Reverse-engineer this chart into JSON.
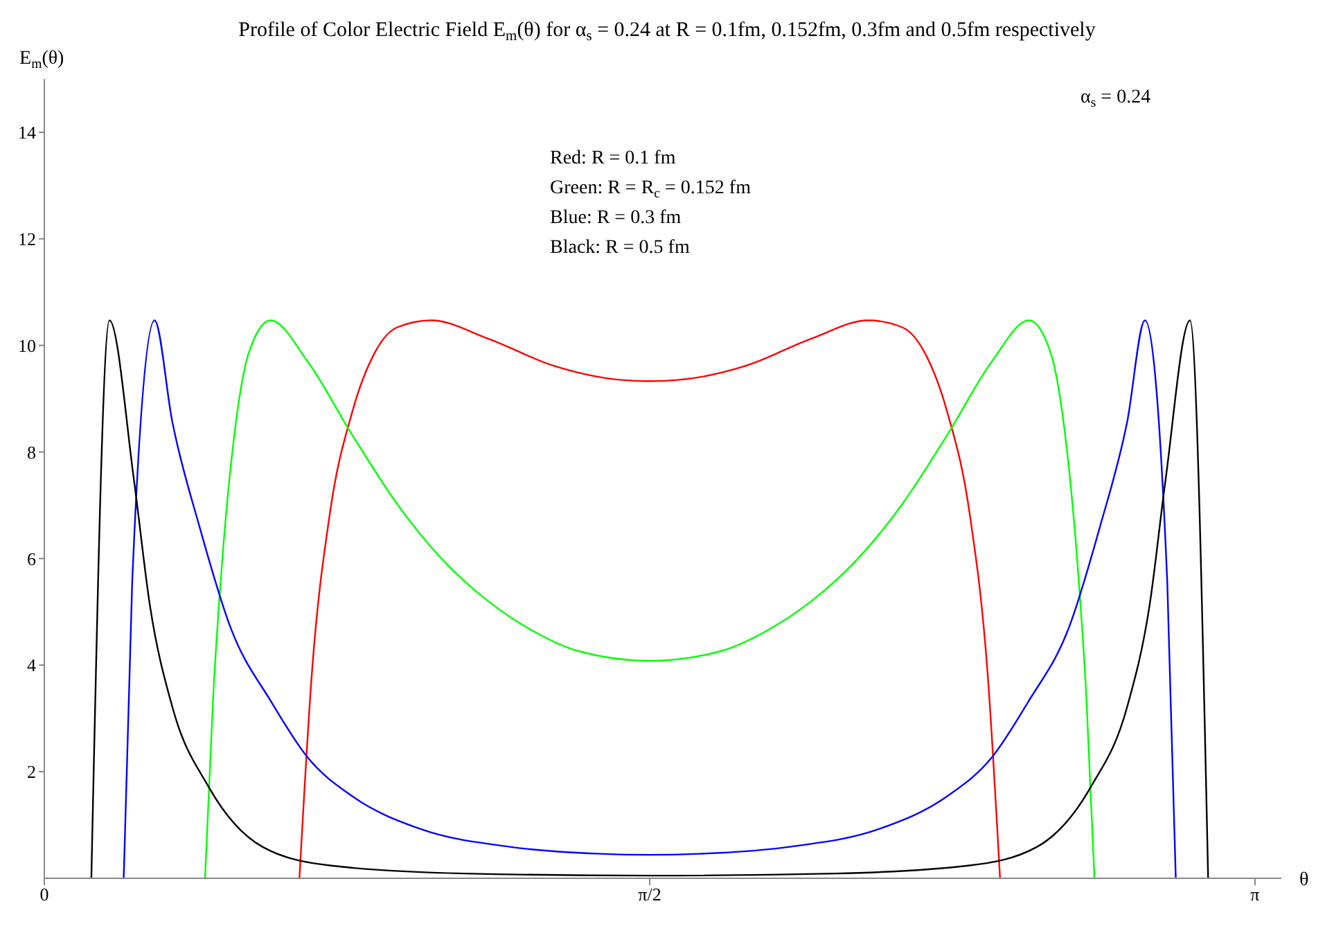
{
  "chart_data": {
    "type": "line",
    "title": "Profile of Color Electric Field E$_{m}$(θ) for α$_{s}$ = 0.24 at R = 0.1fm, 0.152fm, 0.3fm and 0.5fm respectively",
    "xlabel": "θ",
    "ylabel": "E$_{m}$(θ)",
    "annotations": [
      "Red: R = 0.1 fm",
      "Green: R = R$_{c}$  =  0.152 fm",
      "Blue: R = 0.3 fm",
      "Black: R = 0.5 fm",
      "α$_{s}$ =  0.24"
    ],
    "xlim": [
      0,
      3.21
    ],
    "xticks": [
      0,
      {
        "value": 1.5708,
        "label": "π/2"
      },
      {
        "value": 3.1416,
        "label": "π"
      }
    ],
    "ylim": [
      0,
      15
    ],
    "yticks": [
      2,
      4,
      6,
      8,
      10,
      12,
      14
    ],
    "marker": "none",
    "line_style": "solid",
    "tick_labels": "xy",
    "series": [
      {
        "color": "#ff0000",
        "x": [
          0.662,
          0.694,
          0.741,
          0.799,
          0.858,
          0.916,
          1.004,
          1.15,
          1.325,
          1.5,
          1.571,
          1.642,
          1.817,
          1.992,
          2.138,
          2.226,
          2.284,
          2.343,
          2.401,
          2.448,
          2.48
        ],
        "values": [
          0,
          3.82,
          6.85,
          8.75,
          9.87,
          10.34,
          10.47,
          10.13,
          9.61,
          9.35,
          9.33,
          9.35,
          9.61,
          10.13,
          10.47,
          10.34,
          9.87,
          8.75,
          6.85,
          3.82,
          0
        ]
      },
      {
        "color": "#00ff00",
        "x": [
          0.417,
          0.438,
          0.461,
          0.496,
          0.531,
          0.587,
          0.683,
          0.799,
          0.916,
          1.033,
          1.15,
          1.266,
          1.383,
          1.571,
          1.759,
          1.876,
          1.992,
          2.109,
          2.226,
          2.343,
          2.459,
          2.555,
          2.611,
          2.646,
          2.681,
          2.704,
          2.725
        ],
        "values": [
          0,
          3.39,
          5.9,
          8.49,
          9.87,
          10.47,
          9.7,
          8.32,
          7.02,
          5.98,
          5.21,
          4.65,
          4.27,
          4.08,
          4.27,
          4.65,
          5.21,
          5.98,
          7.02,
          8.32,
          9.7,
          10.47,
          9.87,
          8.49,
          5.9,
          3.39,
          0
        ]
      },
      {
        "color": "#0000ff",
        "x": [
          0.206,
          0.228,
          0.286,
          0.332,
          0.403,
          0.484,
          0.589,
          0.683,
          0.799,
          0.974,
          1.208,
          1.441,
          1.571,
          1.701,
          1.934,
          2.168,
          2.343,
          2.459,
          2.553,
          2.658,
          2.739,
          2.81,
          2.856,
          2.914,
          2.936
        ],
        "values": [
          0,
          5.55,
          10.47,
          8.57,
          6.59,
          4.69,
          3.31,
          2.27,
          1.54,
          0.93,
          0.59,
          0.46,
          0.44,
          0.46,
          0.59,
          0.93,
          1.54,
          2.27,
          3.31,
          4.69,
          6.59,
          8.57,
          10.47,
          5.55,
          0
        ]
      },
      {
        "color": "#000000",
        "x": [
          0.122,
          0.169,
          0.233,
          0.274,
          0.332,
          0.426,
          0.566,
          0.741,
          1.09,
          1.571,
          2.052,
          2.401,
          2.576,
          2.716,
          2.81,
          2.868,
          2.909,
          2.973,
          3.02
        ],
        "values": [
          0,
          10.47,
          7.45,
          5.12,
          3.22,
          1.72,
          0.59,
          0.24,
          0.09,
          0.05,
          0.09,
          0.24,
          0.59,
          1.72,
          3.22,
          5.12,
          7.45,
          10.47,
          0
        ]
      }
    ]
  }
}
